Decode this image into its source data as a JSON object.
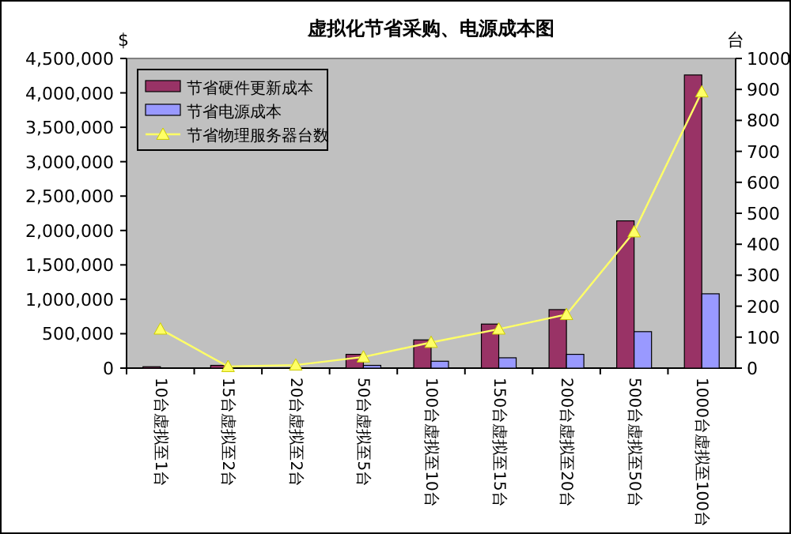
{
  "chart_data": {
    "type": "bar",
    "title": "虚拟化节省采购、电源成本图",
    "ylabel": "$",
    "y2label": "台",
    "categories": [
      "10台虚拟至1台",
      "15台虚拟至2台",
      "20台虚拟至2台",
      "50台虚拟至5台",
      "100台虚拟至10台",
      "150台虚拟至15台",
      "200台虚拟至20台",
      "500台虚拟至50台",
      "1000台虚拟至100台"
    ],
    "series": [
      {
        "name": "节省硬件更新成本",
        "color": "#993366",
        "values": [
          20000,
          40000,
          null,
          200000,
          410000,
          640000,
          850000,
          2140000,
          4260000
        ]
      },
      {
        "name": "节省电源成本",
        "color": "#9999ff",
        "values": [
          null,
          null,
          null,
          40000,
          100000,
          150000,
          200000,
          530000,
          1080000
        ]
      },
      {
        "name": "节省物理服务器台数",
        "type": "line",
        "axis": "y2",
        "color": "#ffff66",
        "marker": "triangle",
        "values": [
          126,
          5,
          10,
          36,
          83,
          126,
          173,
          440,
          892
        ]
      }
    ],
    "ylim": [
      0,
      4500000
    ],
    "yticks": [
      {
        "value": 0,
        "label": "0"
      },
      {
        "value": 500000,
        "label": "500,000"
      },
      {
        "value": 1000000,
        "label": "1,000,000"
      },
      {
        "value": 1500000,
        "label": "1,500,000"
      },
      {
        "value": 2000000,
        "label": "2,000,000"
      },
      {
        "value": 2500000,
        "label": "2,500,000"
      },
      {
        "value": 3000000,
        "label": "3,000,000"
      },
      {
        "value": 3500000,
        "label": "3,500,000"
      },
      {
        "value": 4000000,
        "label": "4,000,000"
      },
      {
        "value": 4500000,
        "label": "4,500,000"
      }
    ],
    "y2lim": [
      0,
      1000
    ],
    "y2ticks": [
      0,
      100,
      200,
      300,
      400,
      500,
      600,
      700,
      800,
      900,
      1000
    ],
    "legend": "top left",
    "grid": false
  }
}
